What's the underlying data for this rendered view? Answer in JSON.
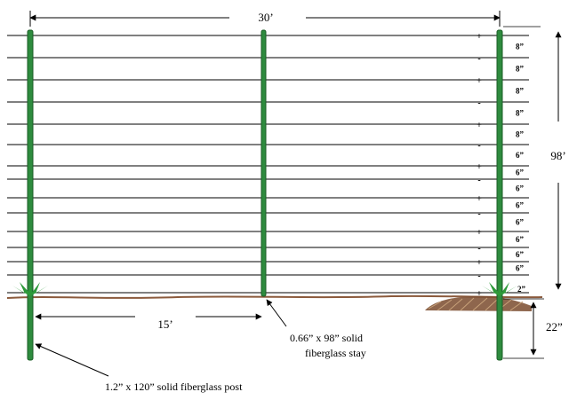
{
  "diagram": {
    "dimensions": {
      "total_span": "30’",
      "half_span": "15’",
      "fence_height": "98’",
      "post_depth": "22”"
    },
    "labels": {
      "post_label": "1.2” x 120” solid fiberglass post",
      "stay_label_line1": "0.66” x 98” solid",
      "stay_label_line2": "fiberglass stay"
    },
    "wire_spacings": [
      "8”",
      "8”",
      "8”",
      "8”",
      "8”",
      "6”",
      "6”",
      "6”",
      "6”",
      "6”",
      "6”",
      "6”",
      "6”",
      "2”"
    ],
    "wire_polarities": [
      "+",
      "-",
      "+",
      "-",
      "+",
      "-",
      "+",
      "-",
      "+",
      "-",
      "+",
      "-",
      "+",
      "-",
      "+"
    ],
    "colors": {
      "post": "#2e8b3e",
      "post_dark": "#1b5e26",
      "wire": "#000000",
      "ground": "#8b5a3c",
      "grass": "#2d9a3a"
    }
  }
}
